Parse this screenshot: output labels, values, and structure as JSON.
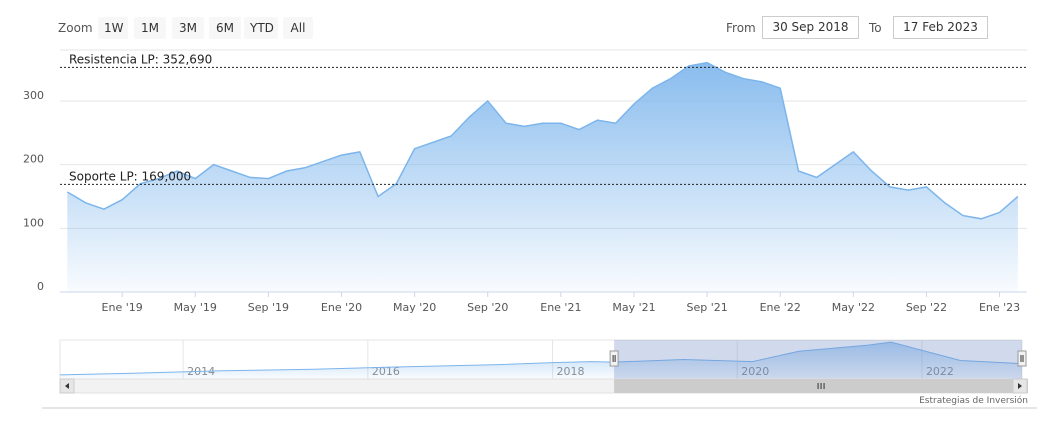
{
  "zoom": {
    "label": "Zoom",
    "buttons": [
      "1W",
      "1M",
      "3M",
      "6M",
      "YTD",
      "All"
    ]
  },
  "range": {
    "from_label": "From",
    "from_value": "30 Sep 2018",
    "to_label": "To",
    "to_value": "17 Feb 2023"
  },
  "chart_data": {
    "type": "area",
    "title": "",
    "xlabel": "",
    "ylabel": "",
    "ylim": [
      0,
      380
    ],
    "y_ticks": [
      0,
      100,
      200,
      300
    ],
    "x_ticks": [
      "Ene '19",
      "May '19",
      "Sep '19",
      "Ene '20",
      "May '20",
      "Sep '20",
      "Ene '21",
      "May '21",
      "Sep '21",
      "Ene '22",
      "May '22",
      "Sep '22",
      "Ene '23"
    ],
    "x_tick_dates": [
      "2019-01",
      "2019-05",
      "2019-09",
      "2020-01",
      "2020-05",
      "2020-09",
      "2021-01",
      "2021-05",
      "2021-09",
      "2022-01",
      "2022-05",
      "2022-09",
      "2023-01"
    ],
    "x": [
      "2018-10",
      "2018-11",
      "2018-12",
      "2019-01",
      "2019-02",
      "2019-03",
      "2019-04",
      "2019-05",
      "2019-06",
      "2019-07",
      "2019-08",
      "2019-09",
      "2019-10",
      "2019-11",
      "2019-12",
      "2020-01",
      "2020-02",
      "2020-03",
      "2020-04",
      "2020-05",
      "2020-06",
      "2020-07",
      "2020-08",
      "2020-09",
      "2020-10",
      "2020-11",
      "2020-12",
      "2021-01",
      "2021-02",
      "2021-03",
      "2021-04",
      "2021-05",
      "2021-06",
      "2021-07",
      "2021-08",
      "2021-09",
      "2021-10",
      "2021-11",
      "2021-12",
      "2022-01",
      "2022-02",
      "2022-03",
      "2022-04",
      "2022-05",
      "2022-06",
      "2022-07",
      "2022-08",
      "2022-09",
      "2022-10",
      "2022-11",
      "2022-12",
      "2023-01",
      "2023-02"
    ],
    "series": [
      {
        "values": [
          157,
          140,
          130,
          145,
          170,
          178,
          190,
          178,
          200,
          190,
          180,
          178,
          190,
          195,
          205,
          215,
          220,
          150,
          170,
          225,
          235,
          245,
          275,
          300,
          265,
          260,
          265,
          265,
          255,
          270,
          265,
          295,
          320,
          335,
          355,
          360,
          345,
          335,
          330,
          320,
          190,
          180,
          200,
          220,
          190,
          165,
          160,
          165,
          140,
          120,
          115,
          125,
          150
        ]
      }
    ],
    "annotations": [
      {
        "label": "Resistencia LP: 352,690",
        "value": 352.69
      },
      {
        "label": "Soporte LP: 169,000",
        "value": 169.0
      }
    ],
    "navigator": {
      "ticks": [
        "2014",
        "2016",
        "2018",
        "2020",
        "2022"
      ],
      "x": [
        "2012-09",
        "2013-06",
        "2014-06",
        "2015-06",
        "2016-06",
        "2017-06",
        "2018-01",
        "2018-06",
        "2018-09",
        "2019-06",
        "2020-03",
        "2020-09",
        "2021-06",
        "2021-09",
        "2022-03",
        "2022-06",
        "2023-02"
      ],
      "values": [
        40,
        55,
        80,
        95,
        120,
        140,
        160,
        170,
        165,
        190,
        170,
        270,
        330,
        360,
        240,
        180,
        150
      ],
      "selection": [
        "2018-09",
        "2023-02"
      ]
    },
    "grid": true,
    "legend": "none",
    "colors": {
      "line": "#7cb5ec",
      "fill_top": "#7cb5ec",
      "fill_bottom": "#ffffff",
      "grid": "#e6e6e6",
      "navigator_mask": "rgba(102,133,194,0.3)"
    }
  },
  "credits": "Estrategias de Inversión"
}
